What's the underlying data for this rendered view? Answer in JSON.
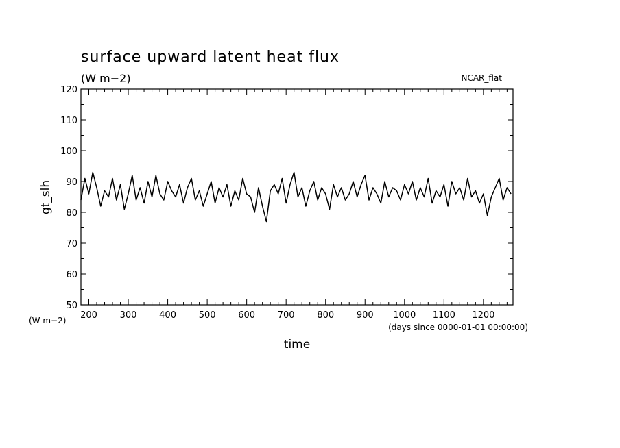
{
  "chart_data": {
    "type": "line",
    "title": "surface upward latent heat flux",
    "subtitle": "(W m−2)",
    "model_label": "NCAR_flat",
    "xlabel": "time",
    "x_units": "(days since 0000-01-01 00:00:00)",
    "ylabel": "gt_slh",
    "y_units": "(W m−2)",
    "xlim": [
      180,
      1275
    ],
    "ylim": [
      50,
      120
    ],
    "x_ticks": [
      200,
      300,
      400,
      500,
      600,
      700,
      800,
      900,
      1000,
      1100,
      1200
    ],
    "y_ticks": [
      50,
      60,
      70,
      80,
      90,
      100,
      110,
      120
    ],
    "grid": false,
    "series": [
      {
        "x": [
          180,
          190,
          200,
          210,
          220,
          230,
          240,
          250,
          260,
          270,
          280,
          290,
          300,
          310,
          320,
          330,
          340,
          350,
          360,
          370,
          380,
          390,
          400,
          410,
          420,
          430,
          440,
          450,
          460,
          470,
          480,
          490,
          500,
          510,
          520,
          530,
          540,
          550,
          560,
          570,
          580,
          590,
          600,
          610,
          620,
          630,
          640,
          650,
          660,
          670,
          680,
          690,
          700,
          710,
          720,
          730,
          740,
          750,
          760,
          770,
          780,
          790,
          800,
          810,
          820,
          830,
          840,
          850,
          860,
          870,
          880,
          890,
          900,
          910,
          920,
          930,
          940,
          950,
          960,
          970,
          980,
          990,
          1000,
          1010,
          1020,
          1030,
          1040,
          1050,
          1060,
          1070,
          1080,
          1090,
          1100,
          1110,
          1120,
          1130,
          1140,
          1150,
          1160,
          1170,
          1180,
          1190,
          1200,
          1210,
          1220,
          1230,
          1240,
          1250,
          1260,
          1270
        ],
        "y": [
          84,
          91,
          86,
          93,
          88,
          82,
          87,
          85,
          91,
          84,
          89,
          81,
          86,
          92,
          84,
          88,
          83,
          90,
          85,
          92,
          86,
          84,
          90,
          87,
          85,
          89,
          83,
          88,
          91,
          84,
          87,
          82,
          86,
          90,
          83,
          88,
          85,
          89,
          82,
          87,
          84,
          91,
          86,
          85,
          80,
          88,
          82,
          77,
          87,
          89,
          86,
          91,
          83,
          89,
          93,
          85,
          88,
          82,
          87,
          90,
          84,
          88,
          86,
          81,
          89,
          85,
          88,
          84,
          86,
          90,
          85,
          89,
          92,
          84,
          88,
          86,
          83,
          90,
          85,
          88,
          87,
          84,
          89,
          86,
          90,
          84,
          88,
          85,
          91,
          83,
          87,
          85,
          89,
          82,
          90,
          86,
          88,
          84,
          91,
          85,
          87,
          83,
          86,
          79,
          85,
          88,
          91,
          84,
          88,
          86
        ]
      }
    ]
  }
}
